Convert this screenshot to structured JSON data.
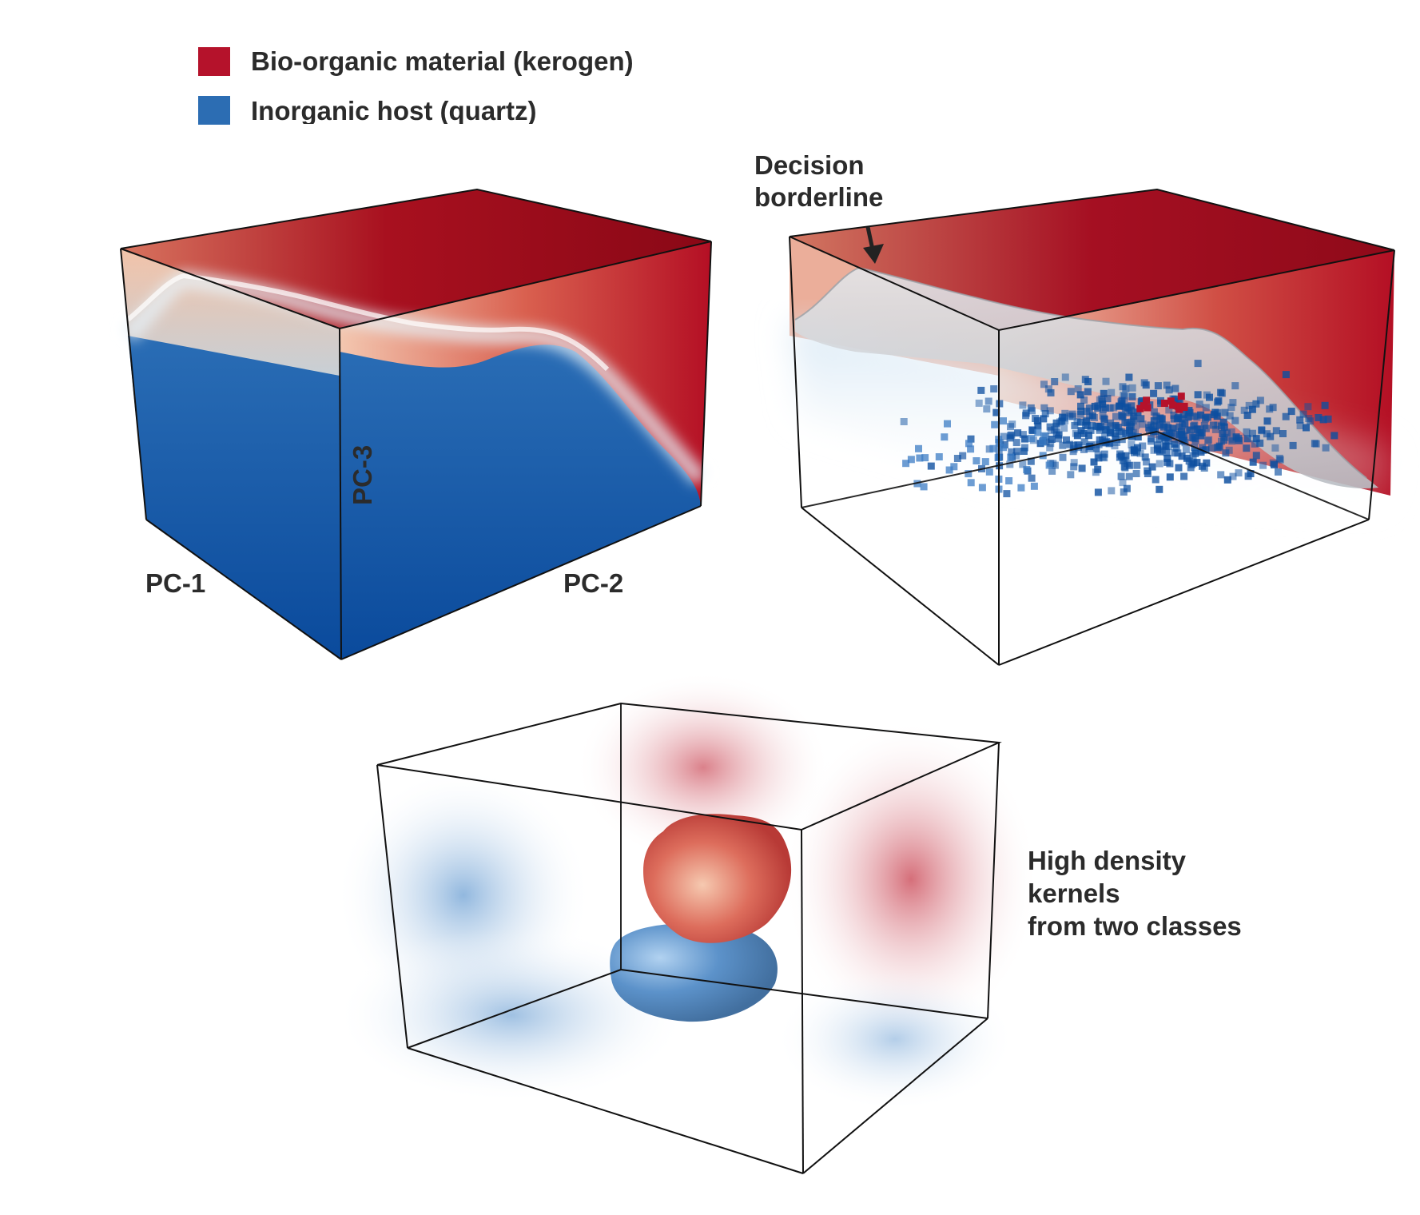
{
  "legend": {
    "items": [
      {
        "label": "Bio-organic material (kerogen)",
        "color": "#b5122b"
      },
      {
        "label": "Inorganic host (quartz)",
        "color": "#2c6db3"
      }
    ]
  },
  "panel_a": {
    "axis_labels": {
      "pc1": "PC-1",
      "pc2": "PC-2",
      "pc3": "PC-3"
    }
  },
  "panel_b": {
    "annotation_line1": "Decision",
    "annotation_line2": "borderline"
  },
  "panel_c": {
    "caption_line1": "High density",
    "caption_line2": "kernels",
    "caption_line3": "from two classes"
  },
  "colors": {
    "kerogen": "#b5122b",
    "quartz": "#0d4fa0",
    "boundary": "#c9ccd0"
  }
}
